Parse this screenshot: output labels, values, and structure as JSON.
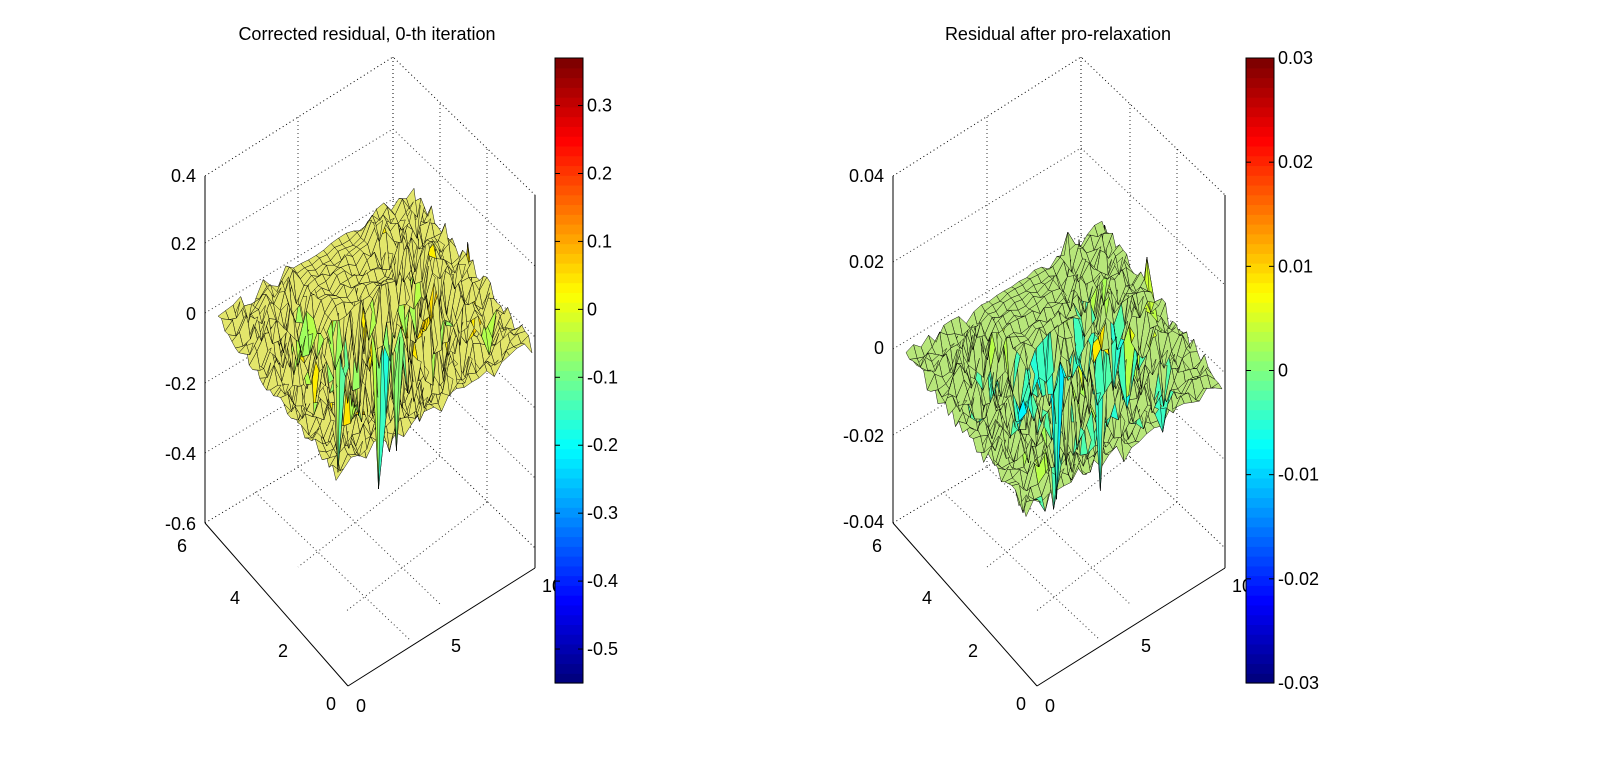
{
  "chart_data": [
    {
      "type": "surface",
      "title": "Corrected residual, 0-th iteration",
      "xlabel": "",
      "ylabel": "",
      "zlabel": "",
      "xlim": [
        0,
        10
      ],
      "ylim": [
        0,
        6
      ],
      "zlim": [
        -0.6,
        0.4
      ],
      "x_ticks": [
        "0",
        "5",
        "10"
      ],
      "y_ticks": [
        "0",
        "2",
        "4",
        "6"
      ],
      "z_ticks": [
        "-0.6",
        "-0.4",
        "-0.2",
        "0",
        "0.2",
        "0.4"
      ],
      "colorbar": {
        "colormap": "jet",
        "range": [
          -0.55,
          0.37
        ],
        "ticks": [
          "0.3",
          "0.2",
          "0.1",
          "0",
          "-0.1",
          "-0.2",
          "-0.3",
          "-0.4",
          "-0.5"
        ]
      },
      "grid": true,
      "approx_value_range": [
        -0.55,
        0.37
      ]
    },
    {
      "type": "surface",
      "title": "Residual after pro-relaxation",
      "xlabel": "",
      "ylabel": "",
      "zlabel": "",
      "xlim": [
        0,
        10
      ],
      "ylim": [
        0,
        6
      ],
      "zlim": [
        -0.04,
        0.04
      ],
      "x_ticks": [
        "0",
        "5",
        "10"
      ],
      "y_ticks": [
        "0",
        "2",
        "4",
        "6"
      ],
      "z_ticks": [
        "-0.04",
        "-0.02",
        "0",
        "0.02",
        "0.04"
      ],
      "colorbar": {
        "colormap": "jet",
        "range": [
          -0.03,
          0.03
        ],
        "ticks": [
          "0.03",
          "0.02",
          "0.01",
          "0",
          "-0.01",
          "-0.02",
          "-0.03"
        ]
      },
      "grid": true,
      "approx_value_range": [
        -0.03,
        0.03
      ]
    }
  ]
}
